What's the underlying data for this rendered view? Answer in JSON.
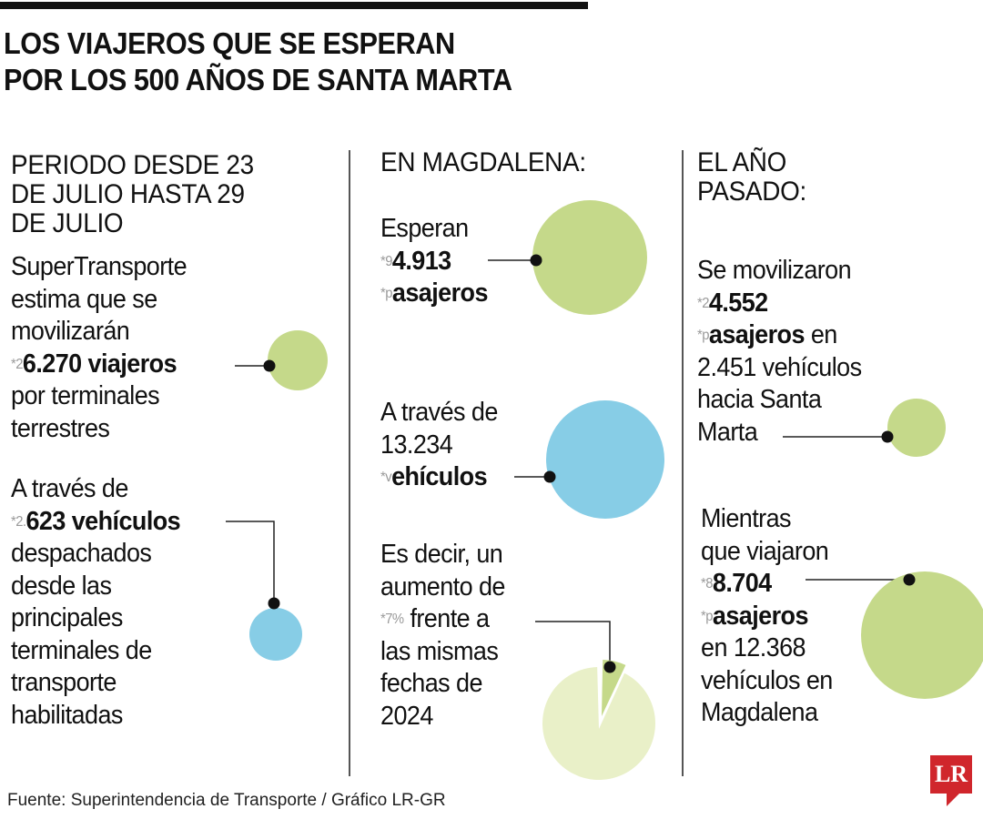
{
  "title": [
    "LOS VIAJEROS QUE SE ESPERAN",
    "POR LOS 500 AÑOS DE SANTA MARTA"
  ],
  "colors": {
    "green": "#c5d98a",
    "blue": "#87cde6",
    "pale_green": "#e9f0c8",
    "logo_red": "#d0262c"
  },
  "blocks": {
    "col1_head": [
      [
        "PERIODO DESDE 23"
      ],
      [
        "DE JULIO HASTA 29"
      ],
      [
        "DE JULIO"
      ]
    ],
    "col1_a": [
      [
        "SuperTransporte"
      ],
      [
        "estima que se"
      ],
      [
        "movilizarán"
      ],
      [
        "*26.270 viajeros"
      ],
      [
        "por terminales"
      ],
      [
        "terrestres"
      ]
    ],
    "col1_b": [
      [
        "A través de"
      ],
      [
        "*2.623 vehículos"
      ],
      [
        "despachados"
      ],
      [
        "desde las"
      ],
      [
        "principales"
      ],
      [
        "terminales de"
      ],
      [
        "transporte"
      ],
      [
        "habilitadas"
      ]
    ],
    "col2_head": [
      [
        "EN MAGDALENA:"
      ]
    ],
    "col2_a": [
      [
        "Esperan"
      ],
      [
        "*94.913"
      ],
      [
        "*pasajeros"
      ]
    ],
    "col2_b": [
      [
        "A través de"
      ],
      [
        "13.234"
      ],
      [
        "*vehículos"
      ]
    ],
    "col2_c": [
      [
        "Es decir, un"
      ],
      [
        "aumento de"
      ],
      [
        "*7%",
        " frente a"
      ],
      [
        "las mismas"
      ],
      [
        "fechas de"
      ],
      [
        "2024"
      ]
    ],
    "col3_head": [
      [
        "EL AÑO"
      ],
      [
        "PASADO:"
      ]
    ],
    "col3_a": [
      [
        "Se movilizaron"
      ],
      [
        "*24.552"
      ],
      [
        "*pasajeros",
        " en"
      ],
      [
        "2.451 vehículos"
      ],
      [
        "hacia Santa"
      ],
      [
        "Marta"
      ]
    ],
    "col3_b": [
      [
        "Mientras"
      ],
      [
        "que viajaron"
      ],
      [
        "*88.704"
      ],
      [
        "*pasajeros"
      ],
      [
        "en 12.368"
      ],
      [
        "vehículos en"
      ],
      [
        "Magdalena"
      ]
    ]
  },
  "pie": {
    "increase_percent": 7
  },
  "source": "Fuente: Superintendencia de Transporte / Gráfico LR-GR",
  "logo": "LR"
}
